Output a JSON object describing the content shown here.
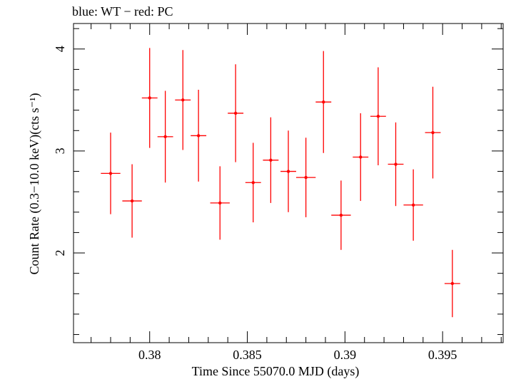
{
  "chart_data": {
    "type": "scatter",
    "title": "blue: WT − red: PC",
    "xlabel": "Time Since 55070.0 MJD (days)",
    "ylabel": "Count Rate (0.3−10.0 keV)(cts s⁻¹)",
    "xlim": [
      0.3761,
      0.3981
    ],
    "ylim": [
      1.12,
      4.25
    ],
    "x_ticks": [
      0.38,
      0.385,
      0.39,
      0.395
    ],
    "x_tick_labels": [
      "0.38",
      "0.385",
      "0.39",
      "0.395"
    ],
    "y_ticks": [
      2,
      3,
      4
    ],
    "y_tick_labels": [
      "2",
      "3",
      "4"
    ],
    "grid": false,
    "legend": "none",
    "colors": {
      "PC": "#ff0000",
      "WT": "#0000ff",
      "axes": "#000000"
    },
    "series": [
      {
        "name": "PC",
        "color": "#ff0000",
        "x": [
          0.378,
          0.3791,
          0.38,
          0.3808,
          0.3817,
          0.3825,
          0.3836,
          0.3844,
          0.3853,
          0.3862,
          0.3871,
          0.388,
          0.3889,
          0.3898,
          0.3908,
          0.3917,
          0.3926,
          0.3935,
          0.3945,
          0.3955
        ],
        "x_err": [
          0.0005,
          0.0005,
          0.0004,
          0.0004,
          0.0004,
          0.0004,
          0.0005,
          0.0004,
          0.0004,
          0.0004,
          0.0004,
          0.0005,
          0.0004,
          0.0005,
          0.0004,
          0.0004,
          0.0004,
          0.0005,
          0.0004,
          0.0004
        ],
        "y": [
          2.78,
          2.51,
          3.52,
          3.14,
          3.5,
          3.15,
          2.49,
          3.37,
          2.69,
          2.91,
          2.8,
          2.74,
          3.48,
          2.37,
          2.94,
          3.34,
          2.87,
          2.47,
          3.18,
          1.7
        ],
        "y_err": [
          0.4,
          0.36,
          0.49,
          0.45,
          0.49,
          0.45,
          0.36,
          0.48,
          0.39,
          0.42,
          0.4,
          0.39,
          0.5,
          0.34,
          0.43,
          0.48,
          0.41,
          0.35,
          0.45,
          0.33
        ]
      }
    ]
  }
}
